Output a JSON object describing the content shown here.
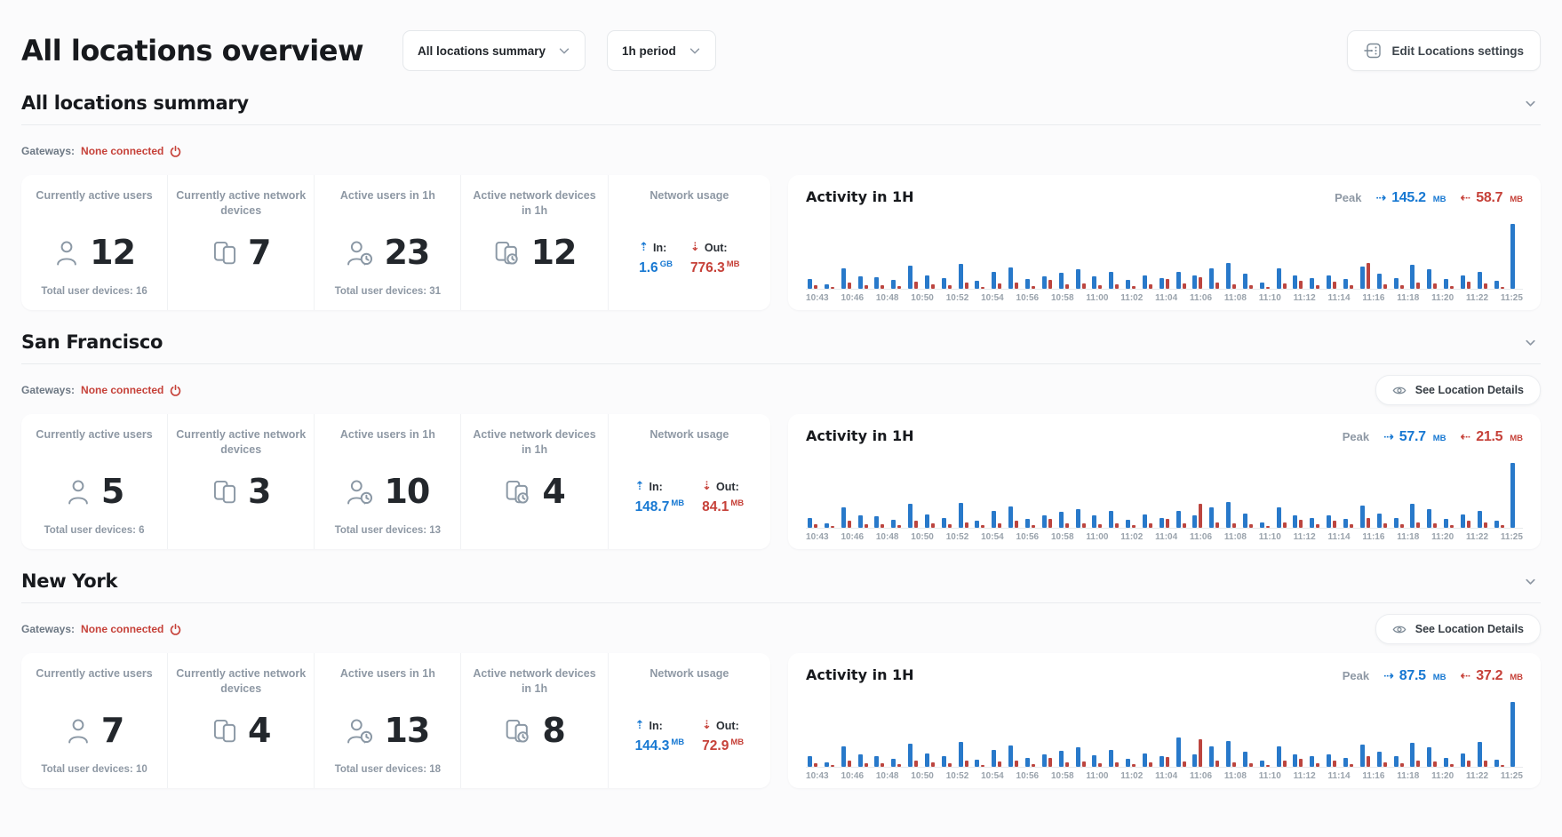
{
  "header": {
    "title": "All locations overview",
    "summary_filter": "All locations summary",
    "period_filter": "1h period",
    "edit_settings": "Edit Locations settings"
  },
  "labels": {
    "gateways": "Gateways:",
    "see_location_details": "See Location Details",
    "currently_active_users": "Currently active users",
    "currently_active_network_devices": "Currently active network devices",
    "active_users_1h": "Active users in 1h",
    "active_network_devices_1h": "Active network devices in 1h",
    "network_usage": "Network usage",
    "in": "In:",
    "out": "Out:",
    "activity_title": "Activity in 1H",
    "peak": "Peak"
  },
  "colors": {
    "accent_blue": "#1778d2",
    "accent_red": "#c64139",
    "chart_blue": "#2879ca",
    "chart_red": "#bc453f",
    "status_red": "#c64139"
  },
  "sections": [
    {
      "title": "All locations summary",
      "gateways_status": "None connected",
      "show_details": false,
      "stats": {
        "currently_active_users": "12",
        "currently_active_network_devices": "7",
        "active_users_1h": "23",
        "active_network_devices_1h": "12",
        "total_user_devices_current": "Total user devices: 16",
        "total_user_devices_1h": "Total user devices: 31",
        "in_value": "1.6",
        "in_unit": "GB",
        "out_value": "776.3",
        "out_unit": "MB"
      },
      "activity": {
        "peak_in": "145.2",
        "peak_in_unit": "MB",
        "peak_out": "58.7",
        "peak_out_unit": "MB"
      }
    },
    {
      "title": "San Francisco",
      "gateways_status": "None connected",
      "show_details": true,
      "stats": {
        "currently_active_users": "5",
        "currently_active_network_devices": "3",
        "active_users_1h": "10",
        "active_network_devices_1h": "4",
        "total_user_devices_current": "Total user devices: 6",
        "total_user_devices_1h": "Total user devices: 13",
        "in_value": "148.7",
        "in_unit": "MB",
        "out_value": "84.1",
        "out_unit": "MB"
      },
      "activity": {
        "peak_in": "57.7",
        "peak_in_unit": "MB",
        "peak_out": "21.5",
        "peak_out_unit": "MB"
      }
    },
    {
      "title": "New York",
      "gateways_status": "None connected",
      "show_details": true,
      "stats": {
        "currently_active_users": "7",
        "currently_active_network_devices": "4",
        "active_users_1h": "13",
        "active_network_devices_1h": "8",
        "total_user_devices_current": "Total user devices: 10",
        "total_user_devices_1h": "Total user devices: 18",
        "in_value": "144.3",
        "in_unit": "MB",
        "out_value": "72.9",
        "out_unit": "MB"
      },
      "activity": {
        "peak_in": "87.5",
        "peak_in_unit": "MB",
        "peak_out": "37.2",
        "peak_out_unit": "MB"
      }
    }
  ],
  "chart_data": [
    {
      "type": "bar",
      "title": "Activity in 1H (All locations summary)",
      "unit": "MB",
      "ylim": [
        0,
        145.2
      ],
      "x_tick_labels": [
        "10:43",
        "10:46",
        "10:48",
        "10:50",
        "10:52",
        "10:54",
        "10:56",
        "10:58",
        "11:00",
        "11:02",
        "11:04",
        "11:06",
        "11:08",
        "11:10",
        "11:12",
        "11:14",
        "11:16",
        "11:18",
        "11:20",
        "11:22",
        "11:25"
      ],
      "series": [
        {
          "name": "In (MB)",
          "color": "#2879ca",
          "values": [
            22,
            9,
            46,
            28,
            26,
            19,
            52,
            30,
            24,
            55,
            17,
            38,
            48,
            21,
            28,
            36,
            43,
            27,
            38,
            19,
            30,
            24,
            38,
            29,
            46,
            58,
            33,
            14,
            46,
            29,
            24,
            29,
            21,
            50,
            34,
            24,
            53,
            43,
            21,
            30,
            38,
            17,
            145.2
          ]
        },
        {
          "name": "Out (MB)",
          "color": "#bc453f",
          "values": [
            7,
            3,
            14,
            8,
            8,
            6,
            15,
            9,
            7,
            13,
            5,
            11,
            14,
            6,
            19,
            9,
            11,
            8,
            10,
            6,
            9,
            21,
            11,
            25,
            13,
            9,
            8,
            4,
            12,
            17,
            8,
            15,
            7,
            58.7,
            10,
            7,
            13,
            11,
            6,
            15,
            12,
            5,
            0
          ]
        }
      ]
    },
    {
      "type": "bar",
      "title": "Activity in 1H (San Francisco)",
      "unit": "MB",
      "ylim": [
        0,
        57.7
      ],
      "x_tick_labels": [
        "10:43",
        "10:46",
        "10:48",
        "10:50",
        "10:52",
        "10:54",
        "10:56",
        "10:58",
        "11:00",
        "11:02",
        "11:04",
        "11:06",
        "11:08",
        "11:10",
        "11:12",
        "11:14",
        "11:16",
        "11:18",
        "11:20",
        "11:22",
        "11:25"
      ],
      "series": [
        {
          "name": "In (MB)",
          "color": "#2879ca",
          "values": [
            9,
            4,
            18,
            11,
            10,
            7,
            21,
            12,
            9,
            22,
            6,
            15,
            19,
            8,
            11,
            14,
            17,
            11,
            15,
            7,
            12,
            9,
            15,
            11,
            18,
            23,
            13,
            5,
            18,
            11,
            9,
            11,
            8,
            20,
            13,
            9,
            21,
            17,
            8,
            12,
            15,
            6,
            57.7
          ]
        },
        {
          "name": "Out (MB)",
          "color": "#bc453f",
          "values": [
            3,
            1,
            6,
            3,
            3,
            2,
            6,
            4,
            3,
            5,
            2,
            4,
            6,
            2,
            8,
            4,
            4,
            3,
            4,
            2,
            4,
            8,
            4,
            21.5,
            5,
            4,
            3,
            1,
            5,
            7,
            3,
            6,
            3,
            9,
            4,
            3,
            5,
            4,
            2,
            6,
            5,
            2,
            0
          ]
        }
      ]
    },
    {
      "type": "bar",
      "title": "Activity in 1H (New York)",
      "unit": "MB",
      "ylim": [
        0,
        87.5
      ],
      "x_tick_labels": [
        "10:43",
        "10:46",
        "10:48",
        "10:50",
        "10:52",
        "10:54",
        "10:56",
        "10:58",
        "11:00",
        "11:02",
        "11:04",
        "11:06",
        "11:08",
        "11:10",
        "11:12",
        "11:14",
        "11:16",
        "11:18",
        "11:20",
        "11:22",
        "11:25"
      ],
      "series": [
        {
          "name": "In (MB)",
          "color": "#2879ca",
          "values": [
            14,
            6,
            28,
            17,
            15,
            11,
            31,
            18,
            14,
            33,
            10,
            23,
            29,
            12,
            17,
            22,
            26,
            16,
            23,
            11,
            18,
            14,
            40,
            17,
            28,
            35,
            20,
            8,
            28,
            17,
            14,
            17,
            12,
            30,
            20,
            14,
            32,
            26,
            12,
            18,
            34,
            10,
            87.5
          ]
        },
        {
          "name": "Out (MB)",
          "color": "#bc453f",
          "values": [
            5,
            2,
            9,
            5,
            5,
            4,
            9,
            6,
            5,
            8,
            3,
            7,
            9,
            4,
            12,
            6,
            7,
            5,
            6,
            4,
            6,
            13,
            7,
            37.2,
            8,
            6,
            5,
            2,
            8,
            11,
            5,
            9,
            4,
            14,
            6,
            5,
            8,
            7,
            4,
            9,
            8,
            3,
            0
          ]
        }
      ]
    }
  ]
}
